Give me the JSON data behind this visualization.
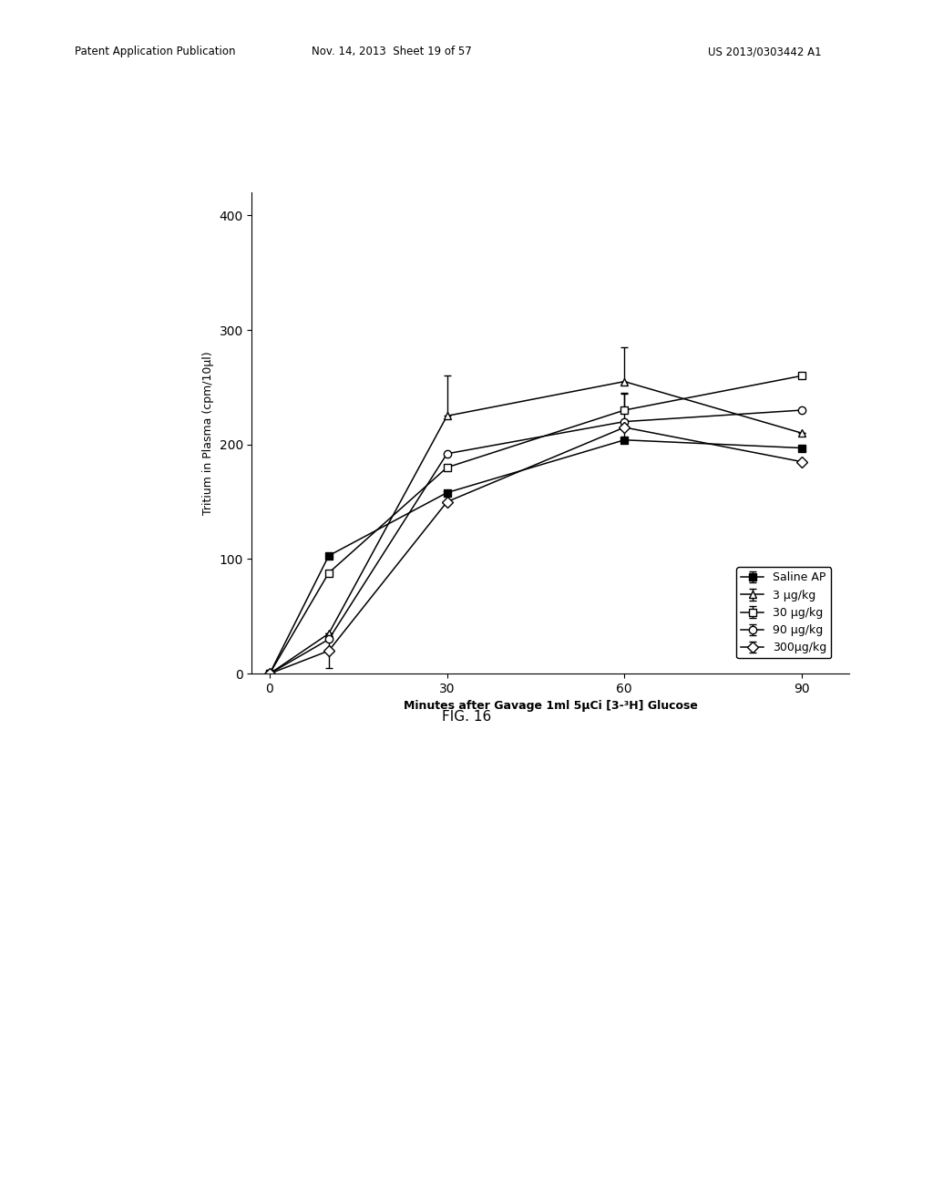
{
  "xlabel": "Minutes after Gavage 1ml 5μCi [3-³H] Glucose",
  "ylabel": "Tritium in Plasma (cpm/10μl)",
  "fig_label": "FIG. 16",
  "header_left": "Patent Application Publication",
  "header_mid": "Nov. 14, 2013  Sheet 19 of 57",
  "header_right": "US 2013/0303442 A1",
  "x": [
    0,
    10,
    30,
    60,
    90
  ],
  "ylim": [
    0,
    420
  ],
  "yticks": [
    0,
    100,
    200,
    300,
    400
  ],
  "xlim": [
    -3,
    98
  ],
  "xticks": [
    0,
    30,
    60,
    90
  ],
  "series": [
    {
      "label": "Saline AP",
      "marker": "s",
      "fillstyle": "full",
      "color": "#000000",
      "y": [
        0,
        103,
        158,
        204,
        197
      ],
      "yerr_lo": [
        0,
        0,
        0,
        0,
        0
      ],
      "yerr_hi": [
        0,
        0,
        0,
        40,
        0
      ]
    },
    {
      "label": "3 μg/kg",
      "marker": "^",
      "fillstyle": "none",
      "color": "#000000",
      "y": [
        0,
        35,
        225,
        255,
        210
      ],
      "yerr_lo": [
        0,
        0,
        0,
        0,
        0
      ],
      "yerr_hi": [
        0,
        0,
        35,
        30,
        0
      ]
    },
    {
      "label": "30 μg/kg",
      "marker": "s",
      "fillstyle": "none",
      "color": "#000000",
      "y": [
        0,
        88,
        180,
        230,
        260
      ],
      "yerr_lo": [
        0,
        0,
        0,
        0,
        0
      ],
      "yerr_hi": [
        0,
        0,
        0,
        15,
        0
      ]
    },
    {
      "label": "90 μg/kg",
      "marker": "o",
      "fillstyle": "none",
      "color": "#000000",
      "y": [
        0,
        30,
        192,
        220,
        230
      ],
      "yerr_lo": [
        0,
        0,
        0,
        0,
        0
      ],
      "yerr_hi": [
        0,
        0,
        0,
        0,
        0
      ]
    },
    {
      "label": "300μg/kg",
      "marker": "D",
      "fillstyle": "none",
      "color": "#000000",
      "y": [
        0,
        20,
        150,
        215,
        185
      ],
      "yerr_lo": [
        0,
        15,
        0,
        0,
        0
      ],
      "yerr_hi": [
        0,
        15,
        0,
        0,
        0
      ]
    }
  ]
}
